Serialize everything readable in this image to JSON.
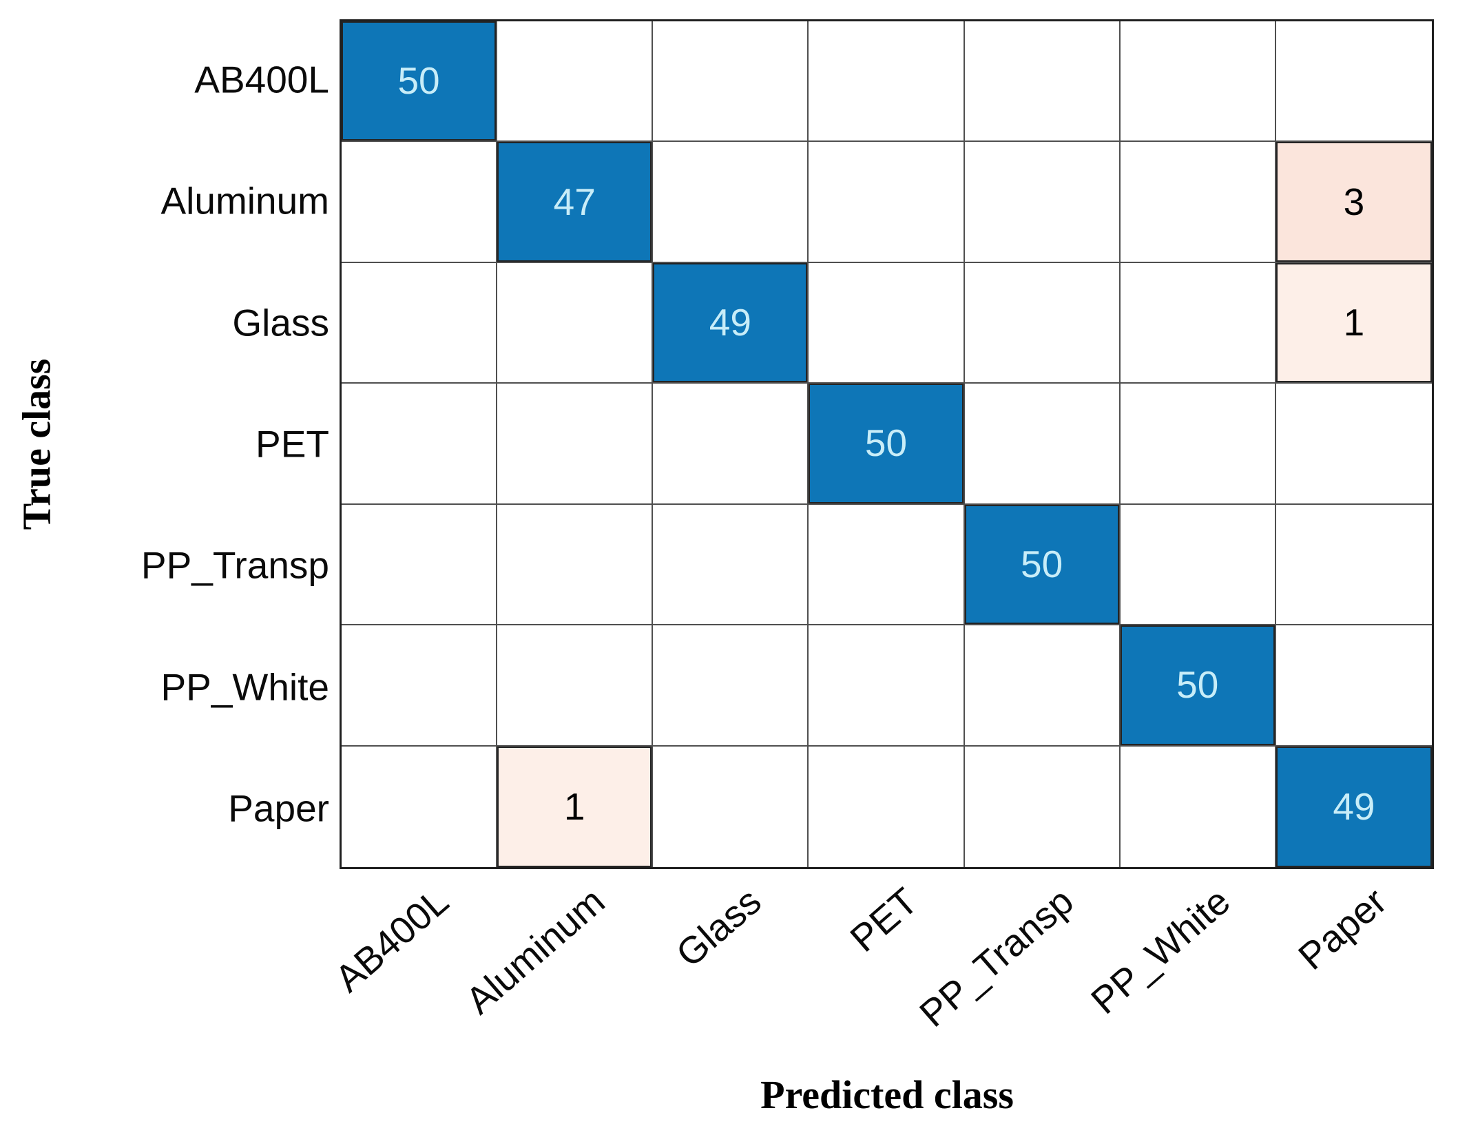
{
  "chart_data": {
    "type": "heatmap",
    "subtype": "confusion-matrix",
    "title": "",
    "xlabel": "Predicted class",
    "ylabel": "True class",
    "categories": [
      "AB400L",
      "Aluminum",
      "Glass",
      "PET",
      "PP_Transp",
      "PP_White",
      "Paper"
    ],
    "matrix": [
      [
        50,
        0,
        0,
        0,
        0,
        0,
        0
      ],
      [
        0,
        47,
        0,
        0,
        0,
        0,
        3
      ],
      [
        0,
        0,
        49,
        0,
        0,
        0,
        1
      ],
      [
        0,
        0,
        0,
        50,
        0,
        0,
        0
      ],
      [
        0,
        0,
        0,
        0,
        50,
        0,
        0
      ],
      [
        0,
        0,
        0,
        0,
        0,
        50,
        0
      ],
      [
        0,
        1,
        0,
        0,
        0,
        0,
        49
      ]
    ],
    "legend": "none",
    "grid": "on",
    "colors": {
      "diagonal_fill": "#0e76b7",
      "diagonal_text": "#c8edf8",
      "offdiag_strong_fill": "#fbe5dc",
      "offdiag_light_fill": "#fdefe8",
      "offdiag_text": "#000000",
      "empty_fill": "#ffffff",
      "grid_line": "#4f4f4f",
      "outer_border": "#1f1f1f"
    }
  }
}
